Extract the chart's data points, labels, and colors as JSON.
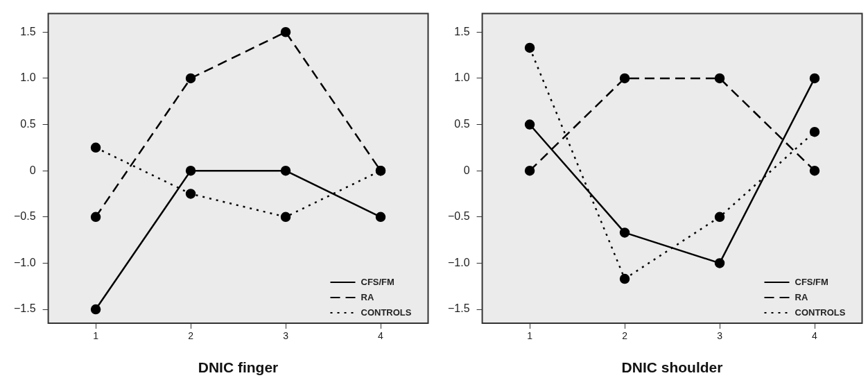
{
  "chart_data": [
    {
      "type": "line",
      "xlabel": "DNIC finger",
      "categories": [
        "1",
        "2",
        "3",
        "4"
      ],
      "series": [
        {
          "name": "CFS/FM",
          "color": "#000000",
          "line_style": "solid",
          "values": [
            -1.5,
            0,
            0,
            -0.5
          ]
        },
        {
          "name": "RA",
          "color": "#000000",
          "line_style": "dashed",
          "values": [
            -0.5,
            1.0,
            1.5,
            0
          ]
        },
        {
          "name": "CONTROLS",
          "color": "#000000",
          "line_style": "dotted",
          "values": [
            0.25,
            -0.25,
            -0.5,
            0
          ]
        }
      ],
      "ylim": [
        -1.65,
        1.7
      ],
      "yticks": [
        {
          "value": -1.5,
          "label": "−1.5"
        },
        {
          "value": -1.0,
          "label": "−1.0"
        },
        {
          "value": -0.5,
          "label": "−0.5"
        },
        0,
        0.5,
        {
          "value": 1.0,
          "label": "1.0"
        },
        1.5
      ],
      "grid": false,
      "legend": "bottom right",
      "marker": "circle"
    },
    {
      "type": "line",
      "xlabel": "DNIC shoulder",
      "categories": [
        "1",
        "2",
        "3",
        "4"
      ],
      "series": [
        {
          "name": "CFS/FM",
          "color": "#000000",
          "line_style": "solid",
          "values": [
            0.5,
            -0.67,
            -1.0,
            1.0
          ]
        },
        {
          "name": "RA",
          "color": "#000000",
          "line_style": "dashed",
          "values": [
            0,
            1.0,
            1.0,
            0
          ]
        },
        {
          "name": "CONTROLS",
          "color": "#000000",
          "line_style": "dotted",
          "values": [
            1.33,
            -1.17,
            -0.5,
            0.42
          ]
        }
      ],
      "ylim": [
        -1.65,
        1.7
      ],
      "yticks": [
        {
          "value": -1.5,
          "label": "−1.5"
        },
        {
          "value": -1.0,
          "label": "−1.0"
        },
        {
          "value": -0.5,
          "label": "−0.5"
        },
        0,
        0.5,
        {
          "value": 1.0,
          "label": "1.0"
        },
        1.5
      ],
      "grid": false,
      "legend": "bottom right",
      "marker": "circle"
    }
  ]
}
